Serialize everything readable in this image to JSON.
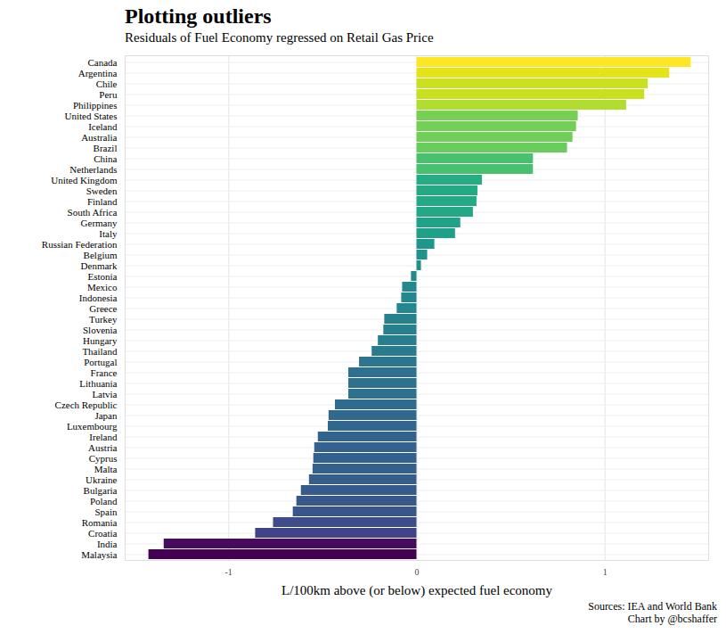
{
  "chart_data": {
    "type": "bar",
    "orientation": "horizontal",
    "title": "Plotting outliers",
    "subtitle": "Residuals of Fuel Economy regressed on Retail Gas Price",
    "xlabel": "L/100km above (or below) expected fuel economy",
    "caption": [
      "Sources: IEA and World Bank",
      "Chart by @bcshaffer"
    ],
    "categories": [
      "Canada",
      "Argentina",
      "Chile",
      "Peru",
      "Philippines",
      "United States",
      "Iceland",
      "Australia",
      "Brazil",
      "China",
      "Netherlands",
      "United Kingdom",
      "Sweden",
      "Finland",
      "South Africa",
      "Germany",
      "Italy",
      "Russian Federation",
      "Belgium",
      "Denmark",
      "Estonia",
      "Mexico",
      "Indonesia",
      "Greece",
      "Turkey",
      "Slovenia",
      "Hungary",
      "Thailand",
      "Portugal",
      "France",
      "Lithuania",
      "Latvia",
      "Czech Republic",
      "Japan",
      "Luxembourg",
      "Ireland",
      "Austria",
      "Cyprus",
      "Malta",
      "Ukraine",
      "Bulgaria",
      "Poland",
      "Spain",
      "Romania",
      "Croatia",
      "India",
      "Malaysia"
    ],
    "values": [
      1.457,
      1.343,
      1.229,
      1.21,
      1.114,
      0.857,
      0.848,
      0.829,
      0.8,
      0.619,
      0.619,
      0.348,
      0.324,
      0.319,
      0.3,
      0.233,
      0.205,
      0.095,
      0.057,
      0.024,
      -0.029,
      -0.076,
      -0.081,
      -0.105,
      -0.171,
      -0.176,
      -0.205,
      -0.238,
      -0.305,
      -0.362,
      -0.362,
      -0.362,
      -0.433,
      -0.467,
      -0.471,
      -0.524,
      -0.543,
      -0.548,
      -0.552,
      -0.571,
      -0.614,
      -0.638,
      -0.657,
      -0.762,
      -0.857,
      -1.343,
      -1.424
    ],
    "xlim": [
      -1.55,
      1.55
    ],
    "xticks": [
      -1,
      0,
      1
    ],
    "grid": true
  }
}
